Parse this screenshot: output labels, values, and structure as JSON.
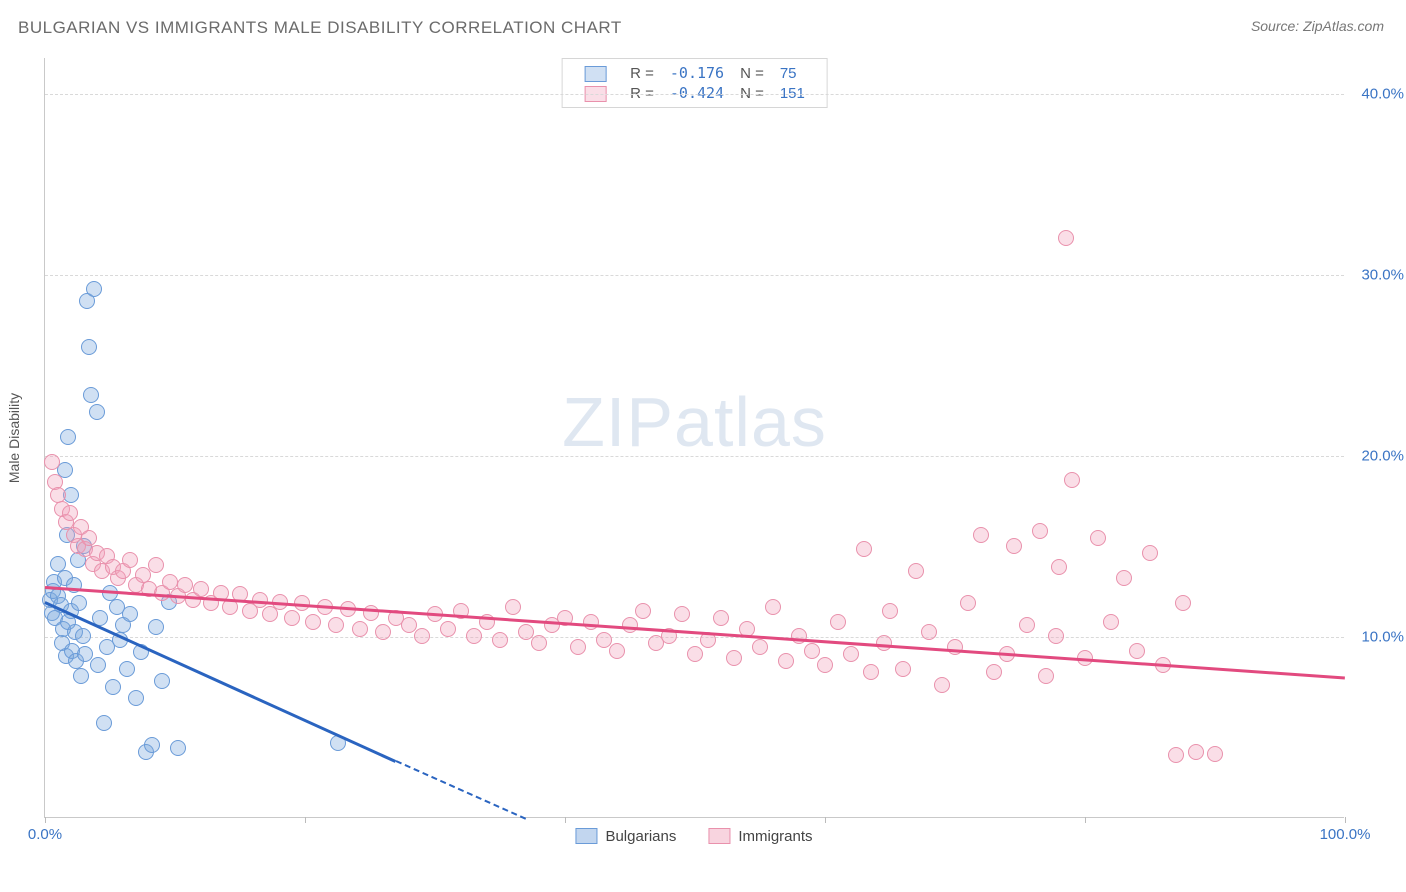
{
  "title": "BULGARIAN VS IMMIGRANTS MALE DISABILITY CORRELATION CHART",
  "source": "Source: ZipAtlas.com",
  "ylabel": "Male Disability",
  "watermark_bold": "ZIP",
  "watermark_light": "atlas",
  "chart": {
    "type": "scatter-correlation",
    "background_color": "#ffffff",
    "grid_color": "#d9d9d9",
    "axis_color": "#c9c9c9",
    "text_color": "#6b6b6b",
    "label_color": "#3a74c4",
    "xlim": [
      0,
      100
    ],
    "ylim": [
      0,
      42
    ],
    "y_ticks": [
      10,
      20,
      30,
      40
    ],
    "y_tick_labels": [
      "10.0%",
      "20.0%",
      "30.0%",
      "40.0%"
    ],
    "x_ticks": [
      0,
      20,
      40,
      60,
      80,
      100
    ],
    "x_tick_labels_shown": {
      "0": "0.0%",
      "100": "100.0%"
    },
    "marker_radius": 8,
    "marker_stroke_width": 1.4,
    "trend_line_width": 2.5,
    "series": [
      {
        "name": "Bulgarians",
        "fill": "rgba(120,165,220,0.35)",
        "stroke": "#6a9bd8",
        "trend_color": "#2a64c0",
        "R": "-0.176",
        "N": "75",
        "trend": {
          "x1": 0,
          "y1": 12.0,
          "x2_solid": 27,
          "y2_solid": 3.2,
          "x2": 42,
          "y2": -1.6
        },
        "points": [
          [
            0.4,
            12.0
          ],
          [
            0.5,
            11.3
          ],
          [
            0.6,
            12.5
          ],
          [
            0.7,
            13.0
          ],
          [
            0.8,
            11.0
          ],
          [
            1.0,
            12.2
          ],
          [
            1.0,
            14.0
          ],
          [
            1.2,
            11.7
          ],
          [
            1.3,
            9.6
          ],
          [
            1.4,
            10.4
          ],
          [
            1.5,
            13.2
          ],
          [
            1.5,
            19.2
          ],
          [
            1.6,
            8.9
          ],
          [
            1.7,
            15.6
          ],
          [
            1.8,
            10.8
          ],
          [
            1.8,
            21.0
          ],
          [
            2.0,
            11.4
          ],
          [
            2.0,
            17.8
          ],
          [
            2.1,
            9.2
          ],
          [
            2.2,
            12.8
          ],
          [
            2.3,
            10.2
          ],
          [
            2.4,
            8.6
          ],
          [
            2.5,
            14.2
          ],
          [
            2.6,
            11.8
          ],
          [
            2.8,
            7.8
          ],
          [
            2.9,
            10.0
          ],
          [
            3.0,
            15.0
          ],
          [
            3.1,
            9.0
          ],
          [
            3.2,
            28.5
          ],
          [
            3.4,
            26.0
          ],
          [
            3.5,
            23.3
          ],
          [
            3.8,
            29.2
          ],
          [
            4.0,
            22.4
          ],
          [
            4.1,
            8.4
          ],
          [
            4.2,
            11.0
          ],
          [
            4.5,
            5.2
          ],
          [
            4.8,
            9.4
          ],
          [
            5.0,
            12.4
          ],
          [
            5.2,
            7.2
          ],
          [
            5.5,
            11.6
          ],
          [
            5.8,
            9.8
          ],
          [
            6.0,
            10.6
          ],
          [
            6.3,
            8.2
          ],
          [
            6.5,
            11.2
          ],
          [
            7.0,
            6.6
          ],
          [
            7.4,
            9.1
          ],
          [
            7.8,
            3.6
          ],
          [
            8.2,
            4.0
          ],
          [
            8.5,
            10.5
          ],
          [
            9.0,
            7.5
          ],
          [
            9.5,
            11.9
          ],
          [
            10.2,
            3.8
          ],
          [
            22.5,
            4.1
          ]
        ]
      },
      {
        "name": "Immigrants",
        "fill": "rgba(240,160,185,0.35)",
        "stroke": "#e991ac",
        "trend_color": "#e24a7f",
        "R": "-0.424",
        "N": "151",
        "trend": {
          "x1": 0,
          "y1": 12.8,
          "x2": 100,
          "y2": 7.8
        },
        "points": [
          [
            0.5,
            19.6
          ],
          [
            0.8,
            18.5
          ],
          [
            1.0,
            17.8
          ],
          [
            1.3,
            17.0
          ],
          [
            1.6,
            16.3
          ],
          [
            1.9,
            16.8
          ],
          [
            2.2,
            15.6
          ],
          [
            2.5,
            15.0
          ],
          [
            2.8,
            16.0
          ],
          [
            3.1,
            14.8
          ],
          [
            3.4,
            15.4
          ],
          [
            3.7,
            14.0
          ],
          [
            4.0,
            14.6
          ],
          [
            4.4,
            13.6
          ],
          [
            4.8,
            14.4
          ],
          [
            5.2,
            13.8
          ],
          [
            5.6,
            13.2
          ],
          [
            6.0,
            13.6
          ],
          [
            6.5,
            14.2
          ],
          [
            7.0,
            12.8
          ],
          [
            7.5,
            13.4
          ],
          [
            8.0,
            12.6
          ],
          [
            8.5,
            13.9
          ],
          [
            9.0,
            12.4
          ],
          [
            9.6,
            13.0
          ],
          [
            10.2,
            12.2
          ],
          [
            10.8,
            12.8
          ],
          [
            11.4,
            12.0
          ],
          [
            12.0,
            12.6
          ],
          [
            12.8,
            11.8
          ],
          [
            13.5,
            12.4
          ],
          [
            14.2,
            11.6
          ],
          [
            15.0,
            12.3
          ],
          [
            15.8,
            11.4
          ],
          [
            16.5,
            12.0
          ],
          [
            17.3,
            11.2
          ],
          [
            18.1,
            11.9
          ],
          [
            19.0,
            11.0
          ],
          [
            19.8,
            11.8
          ],
          [
            20.6,
            10.8
          ],
          [
            21.5,
            11.6
          ],
          [
            22.4,
            10.6
          ],
          [
            23.3,
            11.5
          ],
          [
            24.2,
            10.4
          ],
          [
            25.1,
            11.3
          ],
          [
            26.0,
            10.2
          ],
          [
            27.0,
            11.0
          ],
          [
            28.0,
            10.6
          ],
          [
            29.0,
            10.0
          ],
          [
            30.0,
            11.2
          ],
          [
            31.0,
            10.4
          ],
          [
            32.0,
            11.4
          ],
          [
            33.0,
            10.0
          ],
          [
            34.0,
            10.8
          ],
          [
            35.0,
            9.8
          ],
          [
            36.0,
            11.6
          ],
          [
            37.0,
            10.2
          ],
          [
            38.0,
            9.6
          ],
          [
            39.0,
            10.6
          ],
          [
            40.0,
            11.0
          ],
          [
            41.0,
            9.4
          ],
          [
            42.0,
            10.8
          ],
          [
            43.0,
            9.8
          ],
          [
            44.0,
            9.2
          ],
          [
            45.0,
            10.6
          ],
          [
            46.0,
            11.4
          ],
          [
            47.0,
            9.6
          ],
          [
            48.0,
            10.0
          ],
          [
            49.0,
            11.2
          ],
          [
            50.0,
            9.0
          ],
          [
            51.0,
            9.8
          ],
          [
            52.0,
            11.0
          ],
          [
            53.0,
            8.8
          ],
          [
            54.0,
            10.4
          ],
          [
            55.0,
            9.4
          ],
          [
            56.0,
            11.6
          ],
          [
            57.0,
            8.6
          ],
          [
            58.0,
            10.0
          ],
          [
            59.0,
            9.2
          ],
          [
            60.0,
            8.4
          ],
          [
            61.0,
            10.8
          ],
          [
            62.0,
            9.0
          ],
          [
            63.0,
            14.8
          ],
          [
            63.5,
            8.0
          ],
          [
            64.5,
            9.6
          ],
          [
            65.0,
            11.4
          ],
          [
            66.0,
            8.2
          ],
          [
            67.0,
            13.6
          ],
          [
            68.0,
            10.2
          ],
          [
            69.0,
            7.3
          ],
          [
            70.0,
            9.4
          ],
          [
            71.0,
            11.8
          ],
          [
            72.0,
            15.6
          ],
          [
            73.0,
            8.0
          ],
          [
            74.0,
            9.0
          ],
          [
            74.5,
            15.0
          ],
          [
            75.5,
            10.6
          ],
          [
            76.5,
            15.8
          ],
          [
            77.0,
            7.8
          ],
          [
            77.8,
            10.0
          ],
          [
            78.0,
            13.8
          ],
          [
            78.5,
            32.0
          ],
          [
            79.0,
            18.6
          ],
          [
            80.0,
            8.8
          ],
          [
            81.0,
            15.4
          ],
          [
            82.0,
            10.8
          ],
          [
            83.0,
            13.2
          ],
          [
            84.0,
            9.2
          ],
          [
            85.0,
            14.6
          ],
          [
            86.0,
            8.4
          ],
          [
            87.0,
            3.4
          ],
          [
            87.5,
            11.8
          ],
          [
            88.5,
            3.6
          ],
          [
            90.0,
            3.5
          ]
        ]
      }
    ]
  },
  "legend_bottom": [
    {
      "label": "Bulgarians",
      "fill": "rgba(120,165,220,0.45)",
      "stroke": "#6a9bd8"
    },
    {
      "label": "Immigrants",
      "fill": "rgba(240,160,185,0.45)",
      "stroke": "#e991ac"
    }
  ]
}
